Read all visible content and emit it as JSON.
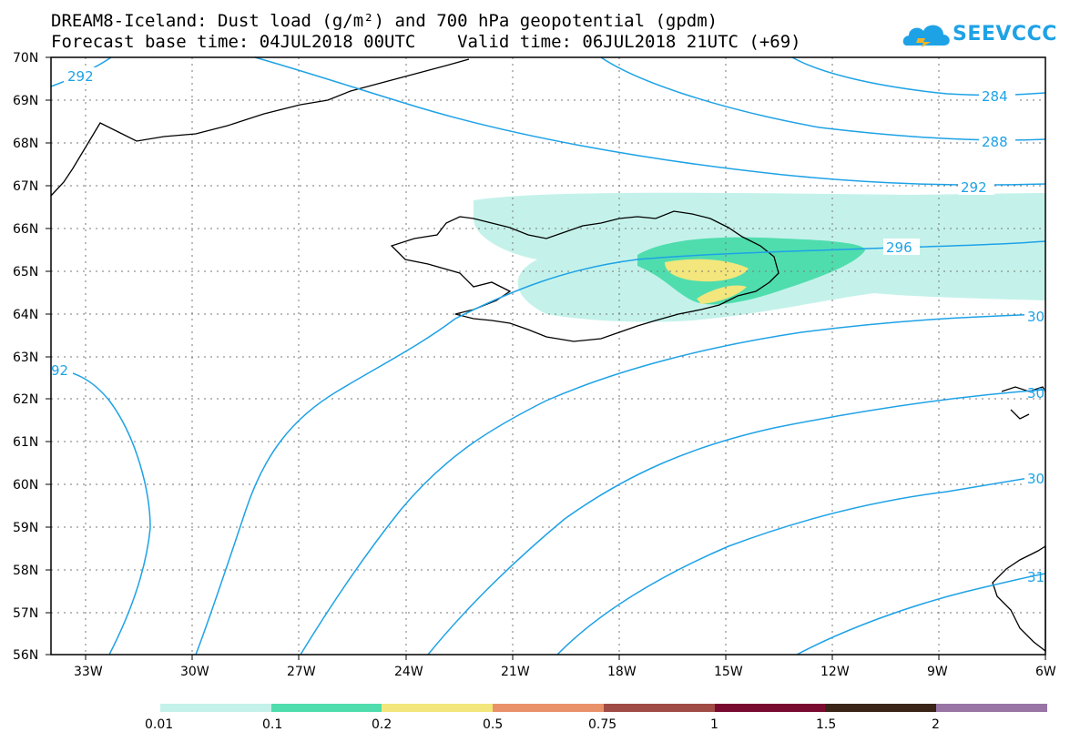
{
  "title_line1": "DREAM8-Iceland: Dust load (g/m²) and 700 hPa geopotential (gpdm)",
  "title_line2": "Forecast base time: 04JUL2018 00UTC    Valid time: 06JUL2018 21UTC (+69)",
  "logo_text": "SEEVCCC",
  "lat_labels": [
    "70N",
    "69N",
    "68N",
    "67N",
    "66N",
    "65N",
    "64N",
    "63N",
    "62N",
    "61N",
    "60N",
    "59N",
    "58N",
    "57N",
    "56N"
  ],
  "lon_labels": [
    "33W",
    "30W",
    "27W",
    "24W",
    "21W",
    "18W",
    "15W",
    "12W",
    "9W",
    "6W"
  ],
  "contour_labels": {
    "c292_nw": "292",
    "c284": "284",
    "c288": "288",
    "c292": "292",
    "c296": "296",
    "c300_e": "30",
    "c292_w": "92",
    "c300_e2": "30",
    "c304_e": "30",
    "c308_e": "31"
  },
  "colorbar": {
    "labels": [
      "0.01",
      "0.1",
      "0.2",
      "0.5",
      "0.75",
      "1",
      "1.5",
      "2"
    ],
    "colors": [
      "#c4f2ea",
      "#4fddae",
      "#f3e67c",
      "#e9926a",
      "#a04b45",
      "#7a0b30",
      "#3a2418",
      "#9975a6"
    ]
  },
  "colors": {
    "contour": "#1ea2e6",
    "frame": "#000000",
    "grid": "#666666"
  }
}
